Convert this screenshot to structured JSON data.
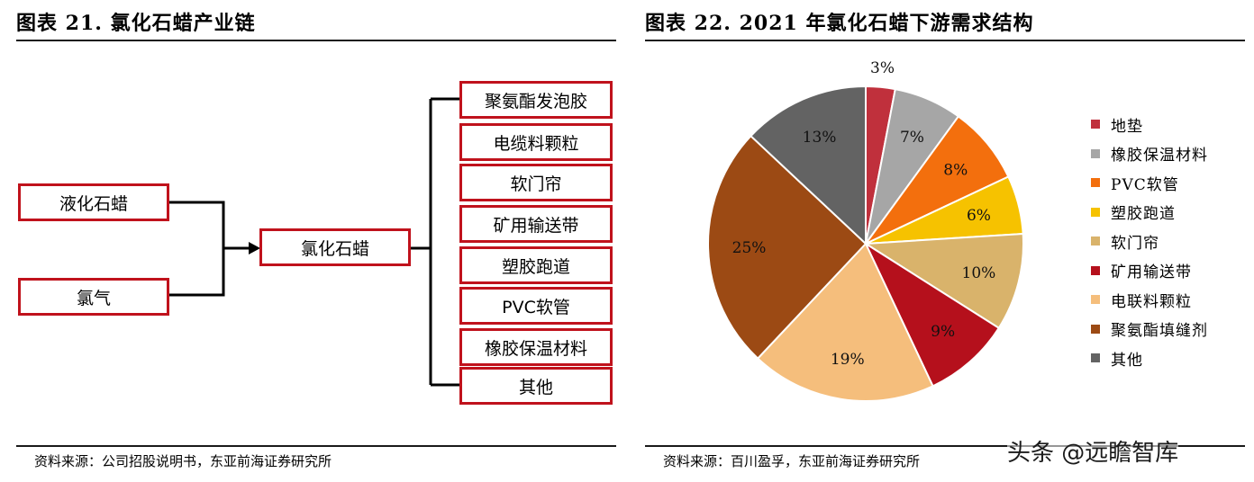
{
  "left_figure": {
    "title": "图表 21. 氯化石蜡产业链",
    "inputs": [
      "液化石蜡",
      "氯气"
    ],
    "center": "氯化石蜡",
    "outputs": [
      "聚氨酯发泡胶",
      "电缆料颗粒",
      "软门帘",
      "矿用输送带",
      "塑胶跑道",
      "PVC软管",
      "橡胶保温材料",
      "其他"
    ],
    "source": "资料来源：公司招股说明书，东亚前海证券研究所"
  },
  "right_figure": {
    "title": "图表 22. 2021 年氯化石蜡下游需求结构",
    "source": "资料来源：百川盈孚，东亚前海证券研究所"
  },
  "chart_data": {
    "type": "pie",
    "title": "",
    "legend_position": "right",
    "slices": [
      {
        "label": "地垫",
        "value": 3,
        "color": "#c0303c"
      },
      {
        "label": "橡胶保温材料",
        "value": 7,
        "color": "#a6a6a6"
      },
      {
        "label": "PVC软管",
        "value": 8,
        "color": "#f36f0d"
      },
      {
        "label": "塑胶跑道",
        "value": 6,
        "color": "#f6c200"
      },
      {
        "label": "软门帘",
        "value": 10,
        "color": "#d9b36b"
      },
      {
        "label": "矿用输送带",
        "value": 9,
        "color": "#b5101c"
      },
      {
        "label": "电联料颗粒",
        "value": 19,
        "color": "#f5be7c"
      },
      {
        "label": "聚氨酯填缝剂",
        "value": 25,
        "color": "#9c4a14"
      },
      {
        "label": "其他",
        "value": 13,
        "color": "#636363"
      }
    ],
    "data_label_suffix": "%"
  },
  "watermark": "头条 @远瞻智库"
}
